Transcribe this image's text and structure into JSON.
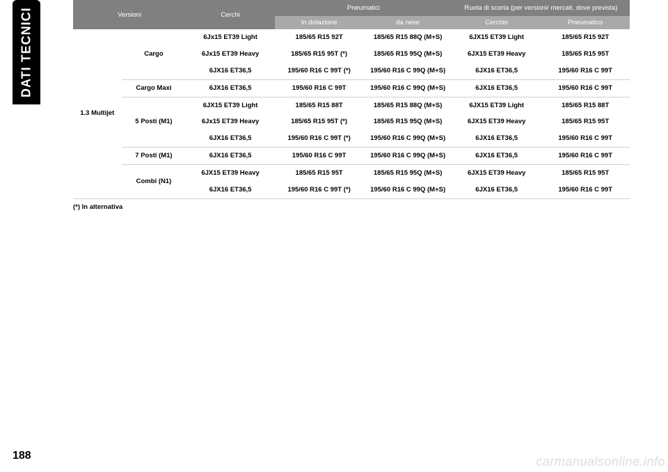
{
  "side_tab": "DATI TECNICI",
  "page_number": "188",
  "watermark": "carmanualsonline.info",
  "footnote": "(*) In alternativa",
  "header": {
    "versioni": "Versioni",
    "cerchi": "Cerchi",
    "pneumatici": "Pneumatici",
    "ruota": "Ruota di scorta (per versioni/ mercati, dove prevista)",
    "in_dotazione": "In dotazione",
    "da_neve": "da neve",
    "cerchio": "Cerchio",
    "pneumatico": "Pneumatico"
  },
  "engine": "1.3 Multijet",
  "groups": {
    "cargo": "Cargo",
    "cargo_maxi": "Cargo Maxi",
    "posti5": "5 Posti (M1)",
    "posti7": "7 Posti (M1)",
    "combi": "Combi (N1)"
  },
  "rows": [
    {
      "cerchi": "6Jx15 ET39 Light",
      "dot": "185/65 R15 92T",
      "neve": "185/65 R15 88Q (M+S)",
      "cerchio2": "6JX15 ET39 Light",
      "pneu2": "185/65 R15 92T"
    },
    {
      "cerchi": "6Jx15 ET39 Heavy",
      "dot": "185/65 R15 95T (*)",
      "neve": "185/65 R15 95Q (M+S)",
      "cerchio2": "6JX15 ET39 Heavy",
      "pneu2": "185/65 R15 95T"
    },
    {
      "cerchi": "6JX16 ET36,5",
      "dot": "195/60 R16 C 99T (*)",
      "neve": "195/60 R16 C 99Q (M+S)",
      "cerchio2": "6JX16 ET36,5",
      "pneu2": "195/60 R16 C 99T"
    },
    {
      "cerchi": "6JX16 ET36,5",
      "dot": "195/60 R16 C 99T",
      "neve": "195/60 R16 C 99Q (M+S)",
      "cerchio2": "6JX16 ET36,5",
      "pneu2": "195/60 R16 C 99T"
    },
    {
      "cerchi": "6JX15 ET39 Light",
      "dot": "185/65 R15 88T",
      "neve": "185/65 R15 88Q (M+S)",
      "cerchio2": "6JX15 ET39 Light",
      "pneu2": "185/65 R15 88T"
    },
    {
      "cerchi": "6Jx15 ET39 Heavy",
      "dot": "185/65 R15 95T (*)",
      "neve": "185/65 R15 95Q (M+S)",
      "cerchio2": "6JX15 ET39 Heavy",
      "pneu2": "185/65 R15 95T"
    },
    {
      "cerchi": "6JX16 ET36,5",
      "dot": "195/60 R16 C 99T (*)",
      "neve": "195/60 R16 C 99Q (M+S)",
      "cerchio2": "6JX16 ET36,5",
      "pneu2": "195/60 R16 C 99T"
    },
    {
      "cerchi": "6JX16 ET36,5",
      "dot": "195/60 R16 C 99T",
      "neve": "195/60 R16 C 99Q (M+S)",
      "cerchio2": "6JX16 ET36,5",
      "pneu2": "195/60 R16 C 99T"
    },
    {
      "cerchi": "6JX15 ET39 Heavy",
      "dot": "185/65 R15 95T",
      "neve": "185/65 R15 95Q (M+S)",
      "cerchio2": "6JX15 ET39 Heavy",
      "pneu2": "185/65 R15 95T"
    },
    {
      "cerchi": "6JX16 ET36,5",
      "dot": "195/60 R16 C 99T (*)",
      "neve": "195/60 R16 C 99Q (M+S)",
      "cerchio2": "6JX16 ET36,5",
      "pneu2": "195/60 R16 C 99T"
    }
  ],
  "style": {
    "header_bg1": "#808080",
    "header_bg2": "#a9a9a9",
    "header_text": "#ffffff",
    "row_border": "#d0d0d0",
    "body_text": "#000000",
    "side_tab_bg": "#000000",
    "side_tab_text": "#ffffff",
    "page_bg": "#ffffff",
    "watermark_color": "#dcdcdc",
    "font_body_pt": 9.5,
    "font_sidetab_pt": 18
  }
}
